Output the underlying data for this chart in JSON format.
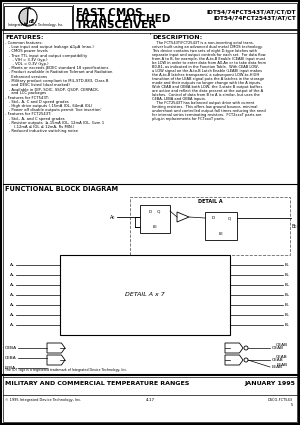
{
  "title_line1": "FAST CMOS",
  "title_line2": "OCTAL LATCHED",
  "title_line3": "TRANSCEIVER",
  "part_line1": "IDT54/74FCT543T/AT/CT/DT",
  "part_line2": "IDT54/74FCT2543T/AT/CT",
  "features_title": "FEATURES:",
  "description_title": "DESCRIPTION:",
  "features_text": "- Common features:\n   - Low input and output leakage ≤1µA (max.)\n   - CMOS power levels\n   - True TTL input and output compatibility\n      - VIH = 3.3V (typ.)\n      - VOL = 0.3V (typ.)\n   - Meets or exceeds JEDEC standard 18 specifications\n   - Product available in Radiation Tolerant and Radiation\n     Enhanced versions\n   - Military product compliant to MIL-STD-883, Class B\n     and DESC listed (dual marked)\n   - Available in DIP, SOIC, SSOP, QSOP, CERPACK,\n     and LCC packages\n- Features for FCT543T:\n   - Std., A, C and D speed grades\n   - High drive outputs (-15mA IOL, 64mA IOL)\n   - Power off disable outputs permit 'live insertion'\n- Features for FCT2543T:\n   - Std., A, and C speed grades\n   - Resistor outputs  ≥-15mA IOL, 12mA IOL, Gvm 1\n       (-12mA ≤ IOL ≤ 12mA, Rs MIN.)\n   - Reduced inductive switching noise",
  "desc_text": "    The FCT543T/FCT2543T is a non-inverting octal trans-\nceiver built using an advanced dual metal CMOS technology.\nThis device contains two sets of eight D-type latches with\nseparate input and output controls for each set.  For data flow\nfrom A to B, for example, the A-to-B Enable (CEAB) input must\nbe LOW in order to enter data from A0-An or to take data from\nB0-B1, as indicated in the Function Table.  With CEAB LOW,\na LOW signal on the A-to-B Latch Enable (LEAB) input makes\nthe A-to-B latches transparent; a subsequent LOW-to-HIGH\ntransition of the LEAB signal puts the A latches in the storage\nmode and their outputs no longer change with the A inputs.\nWith CEAB and OEBA both LOW, the 3-state B output buffers\nare active and reflect the data present at the output of the A\nlatches.  Control of data from B to A is similar, but uses the\nCEBA, LEBA and OEBA inputs.\n    The FCT2543T has balanced output drive with current\nlimiting resistors.  This offers low ground bounce, minimal\nundershoot and controlled output fall times reducing the need\nfor internal series terminating resistors.  FCT2xxxT parts are\nplug-in replacements for FCTxxxT parts.",
  "diag_title": "FUNCTIONAL BLOCK DIAGRAM",
  "footer_bar": "MILITARY AND COMMERCIAL TEMPERATURE RANGES",
  "footer_right": "JANUARY 1995",
  "footer_company": "© 1995 Integrated Device Technology, Inc.",
  "footer_page": "4-17",
  "footer_doc": "DSCO-FCT543\n5",
  "bg_color": "#ffffff"
}
